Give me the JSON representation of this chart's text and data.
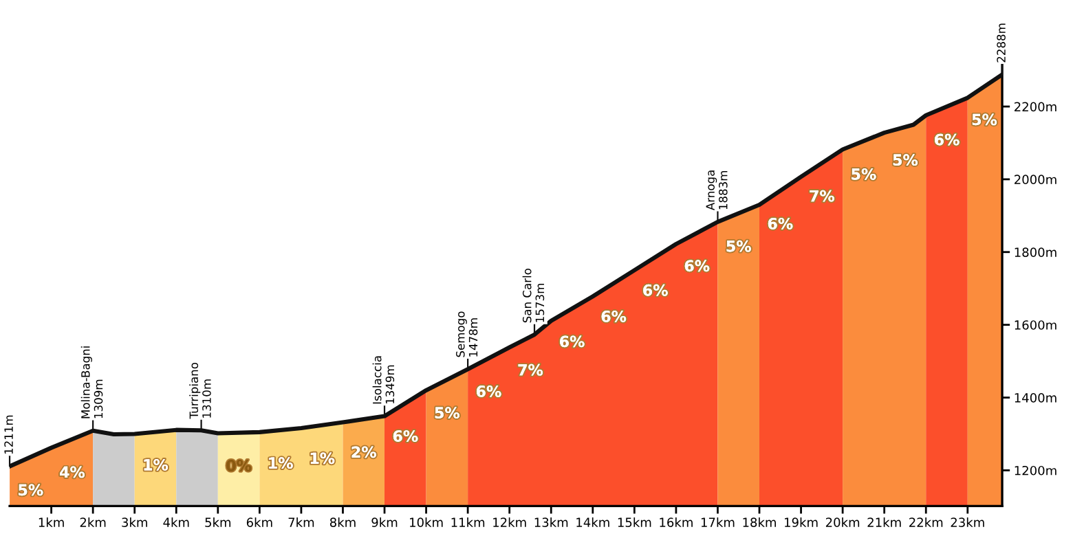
{
  "chart_data": {
    "type": "area",
    "xlim": [
      0,
      23.83
    ],
    "ylim": [
      1102,
      2428
    ],
    "xticks": [
      {
        "value": 1,
        "label": "1km"
      },
      {
        "value": 2,
        "label": "2km"
      },
      {
        "value": 3,
        "label": "3km"
      },
      {
        "value": 4,
        "label": "4km"
      },
      {
        "value": 5,
        "label": "5km"
      },
      {
        "value": 6,
        "label": "6km"
      },
      {
        "value": 7,
        "label": "7km"
      },
      {
        "value": 8,
        "label": "8km"
      },
      {
        "value": 9,
        "label": "9km"
      },
      {
        "value": 10,
        "label": "10km"
      },
      {
        "value": 11,
        "label": "11km"
      },
      {
        "value": 12,
        "label": "12km"
      },
      {
        "value": 13,
        "label": "13km"
      },
      {
        "value": 14,
        "label": "14km"
      },
      {
        "value": 15,
        "label": "15km"
      },
      {
        "value": 16,
        "label": "16km"
      },
      {
        "value": 17,
        "label": "17km"
      },
      {
        "value": 18,
        "label": "18km"
      },
      {
        "value": 19,
        "label": "19km"
      },
      {
        "value": 20,
        "label": "20km"
      },
      {
        "value": 21,
        "label": "21km"
      },
      {
        "value": 22,
        "label": "22km"
      },
      {
        "value": 23,
        "label": "23km"
      }
    ],
    "yticks": [
      {
        "value": 1200,
        "label": "1200m"
      },
      {
        "value": 1400,
        "label": "1400m"
      },
      {
        "value": 1600,
        "label": "1600m"
      },
      {
        "value": 1800,
        "label": "1800m"
      },
      {
        "value": 2000,
        "label": "2000m"
      },
      {
        "value": 2200,
        "label": "2200m"
      }
    ],
    "grid": false,
    "legend": false,
    "series": [
      {
        "color": "#fb8c3d",
        "x": [
          0,
          1,
          2
        ],
        "values": [
          1211,
          1262,
          1309
        ]
      },
      {
        "color": "#cccccc",
        "x": [
          2,
          2.5,
          3
        ],
        "values": [
          1309,
          1299,
          1300
        ]
      },
      {
        "color": "#fdd87a",
        "x": [
          3,
          4
        ],
        "values": [
          1300,
          1311
        ]
      },
      {
        "color": "#cccccc",
        "x": [
          4,
          4.6,
          5
        ],
        "values": [
          1311,
          1310,
          1302
        ]
      },
      {
        "color": "#feeea6",
        "x": [
          5,
          6
        ],
        "values": [
          1302,
          1305
        ]
      },
      {
        "color": "#fdd87a",
        "x": [
          6,
          7,
          8
        ],
        "values": [
          1305,
          1316,
          1332
        ]
      },
      {
        "color": "#fbab4d",
        "x": [
          8,
          9
        ],
        "values": [
          1332,
          1349
        ]
      },
      {
        "color": "#fc4f2b",
        "x": [
          9,
          10
        ],
        "values": [
          1349,
          1420
        ]
      },
      {
        "color": "#fb8c3d",
        "x": [
          10,
          11
        ],
        "values": [
          1420,
          1478
        ]
      },
      {
        "color": "#fc4f2b",
        "x": [
          11,
          12,
          12.6,
          13,
          14,
          15,
          16,
          17
        ],
        "values": [
          1478,
          1538,
          1573,
          1611,
          1678,
          1750,
          1822,
          1883
        ]
      },
      {
        "color": "#fb8c3d",
        "x": [
          17,
          18
        ],
        "values": [
          1883,
          1930
        ]
      },
      {
        "color": "#fc4f2b",
        "x": [
          18,
          19,
          20
        ],
        "values": [
          1930,
          2007,
          2082
        ]
      },
      {
        "color": "#fb8c3d",
        "x": [
          20,
          21,
          21.7,
          22
        ],
        "values": [
          2082,
          2128,
          2150,
          2176
        ]
      },
      {
        "color": "#fc4f2b",
        "x": [
          22,
          23
        ],
        "values": [
          2176,
          2224
        ]
      },
      {
        "color": "#fb8c3d",
        "x": [
          23,
          23.83
        ],
        "values": [
          2224,
          2288
        ]
      },
      {
        "type": "line",
        "color": "#111111",
        "x": [
          0,
          1,
          2,
          2.5,
          3,
          4,
          4.6,
          5,
          6,
          7,
          8,
          9,
          10,
          11,
          12,
          12.6,
          13,
          14,
          15,
          16,
          17,
          18,
          19,
          20,
          21,
          21.7,
          22,
          23,
          23.83
        ],
        "values": [
          1211,
          1262,
          1309,
          1299,
          1300,
          1311,
          1310,
          1302,
          1305,
          1316,
          1332,
          1349,
          1420,
          1478,
          1538,
          1573,
          1611,
          1678,
          1750,
          1822,
          1883,
          1930,
          2007,
          2082,
          2128,
          2150,
          2176,
          2224,
          2288
        ]
      }
    ],
    "annotations": [
      {
        "text": "1211m",
        "x": 0,
        "y": 1211
      },
      {
        "text": "Molina-Bagni\n1309m",
        "x": 2,
        "y": 1309
      },
      {
        "text": "Turripiano\n1310m",
        "x": 4.6,
        "y": 1310
      },
      {
        "text": "Isolaccia\n1349m",
        "x": 9,
        "y": 1349
      },
      {
        "text": "Semogo\n1478m",
        "x": 11,
        "y": 1478
      },
      {
        "text": "San Carlo\n1573m",
        "x": 12.6,
        "y": 1573
      },
      {
        "text": "Arnoga\n1883m",
        "x": 17,
        "y": 1883
      },
      {
        "text": "2288m",
        "x": 23.83,
        "y": 2288
      },
      {
        "text": "5%",
        "x": 0.5,
        "y": 1237
      },
      {
        "text": "4%",
        "x": 1.5,
        "y": 1286
      },
      {
        "text": "1%",
        "x": 3.5,
        "y": 1306
      },
      {
        "text": "0%",
        "x": 5.5,
        "y": 1304
      },
      {
        "text": "1%",
        "x": 6.5,
        "y": 1311
      },
      {
        "text": "1%",
        "x": 7.5,
        "y": 1324
      },
      {
        "text": "2%",
        "x": 8.5,
        "y": 1341
      },
      {
        "text": "6%",
        "x": 9.5,
        "y": 1385
      },
      {
        "text": "5%",
        "x": 10.5,
        "y": 1449
      },
      {
        "text": "6%",
        "x": 11.5,
        "y": 1508
      },
      {
        "text": "7%",
        "x": 12.5,
        "y": 1567
      },
      {
        "text": "6%",
        "x": 13.5,
        "y": 1645
      },
      {
        "text": "6%",
        "x": 14.5,
        "y": 1714
      },
      {
        "text": "6%",
        "x": 15.5,
        "y": 1786
      },
      {
        "text": "6%",
        "x": 16.5,
        "y": 1853
      },
      {
        "text": "5%",
        "x": 17.5,
        "y": 1907
      },
      {
        "text": "6%",
        "x": 18.5,
        "y": 1969
      },
      {
        "text": "7%",
        "x": 19.5,
        "y": 2045
      },
      {
        "text": "5%",
        "x": 20.5,
        "y": 2105
      },
      {
        "text": "5%",
        "x": 21.5,
        "y": 2144
      },
      {
        "text": "6%",
        "x": 22.5,
        "y": 2200
      },
      {
        "text": "5%",
        "x": 23.4,
        "y": 2255
      }
    ]
  }
}
